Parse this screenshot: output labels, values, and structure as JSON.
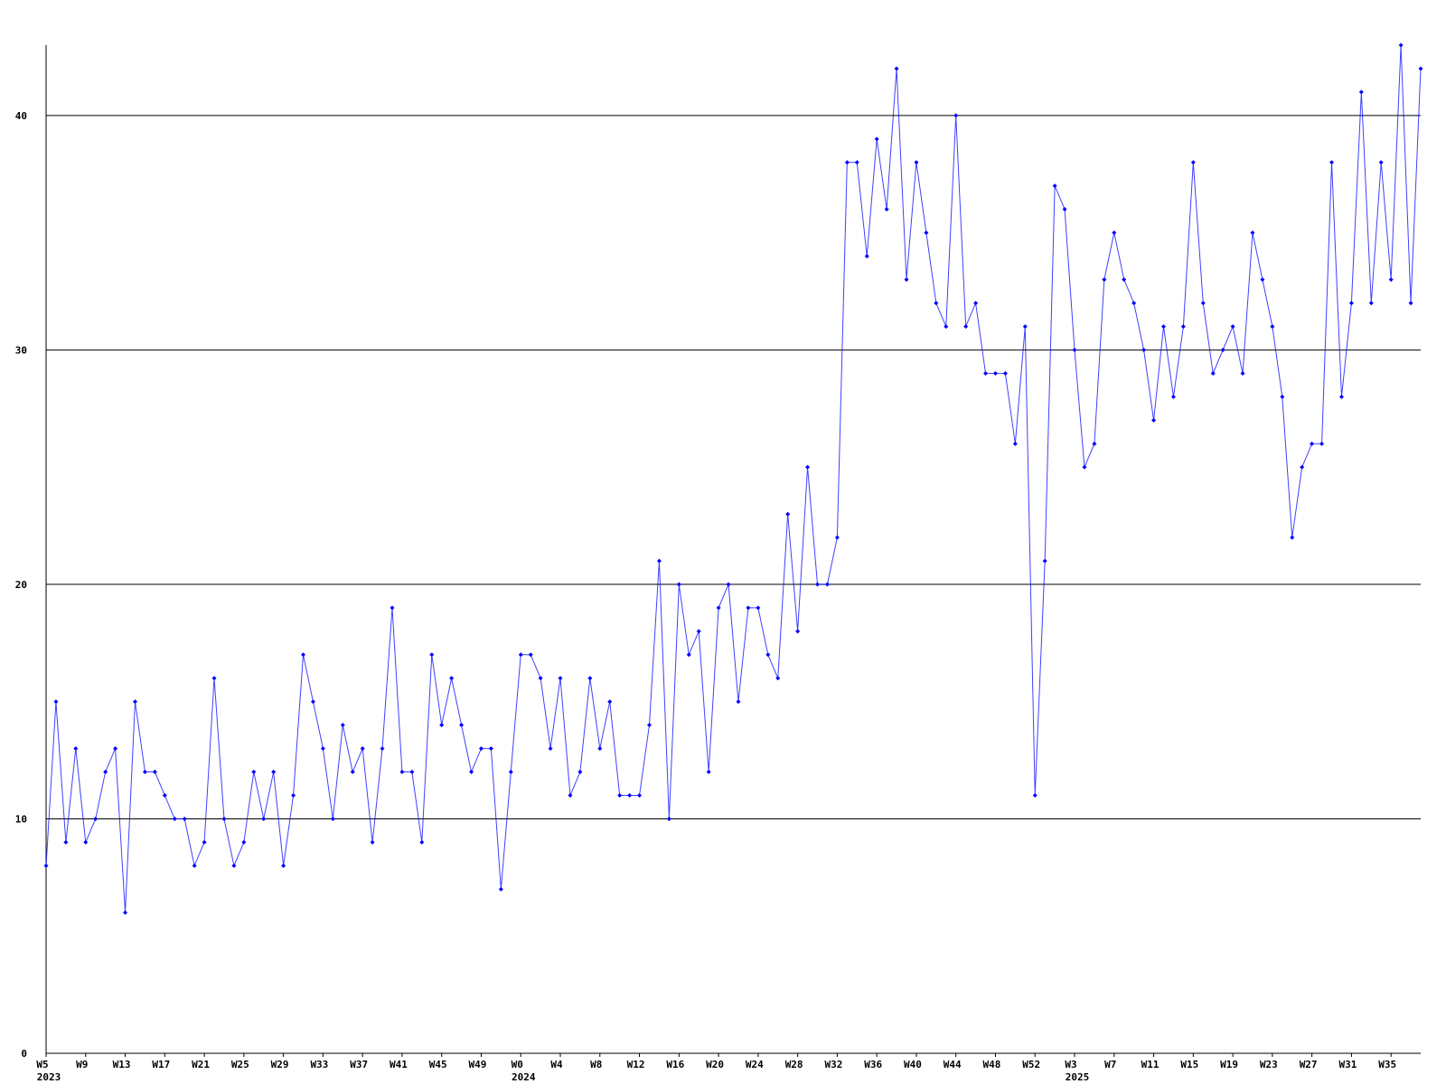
{
  "chart_data": {
    "type": "line",
    "color": "#0000ff",
    "grid": true,
    "ylim": [
      0,
      43
    ],
    "yticks": [
      0,
      10,
      20,
      30,
      40
    ],
    "categories": [
      "W5",
      null,
      null,
      null,
      "W9",
      null,
      null,
      null,
      "W13",
      null,
      null,
      null,
      "W17",
      null,
      null,
      null,
      "W21",
      null,
      null,
      null,
      "W25",
      null,
      null,
      null,
      "W29",
      null,
      null,
      null,
      "W33",
      null,
      null,
      null,
      "W37",
      null,
      null,
      null,
      "W41",
      null,
      null,
      null,
      "W45",
      null,
      null,
      null,
      "W49",
      null,
      null,
      null,
      "W0",
      null,
      null,
      null,
      "W4",
      null,
      null,
      null,
      "W8",
      null,
      null,
      null,
      "W12",
      null,
      null,
      null,
      "W16",
      null,
      null,
      null,
      "W20",
      null,
      null,
      null,
      "W24",
      null,
      null,
      null,
      "W28",
      null,
      null,
      null,
      "W32",
      null,
      null,
      null,
      "W36",
      null,
      null,
      null,
      "W40",
      null,
      null,
      null,
      "W44",
      null,
      null,
      null,
      "W48",
      null,
      null,
      null,
      "W52",
      null,
      null,
      null,
      "W3",
      null,
      null,
      null,
      "W7",
      null,
      null,
      null,
      "W11",
      null,
      null,
      null,
      "W15",
      null,
      null,
      null,
      "W19",
      null,
      null,
      null,
      "W23",
      null,
      null,
      null,
      "W27",
      null,
      null,
      null,
      "W31",
      null,
      null,
      null,
      "W35",
      null,
      null,
      null
    ],
    "category_years": [
      "2023",
      null,
      null,
      null,
      null,
      null,
      null,
      null,
      null,
      null,
      null,
      null,
      null,
      null,
      null,
      null,
      null,
      null,
      null,
      null,
      null,
      null,
      null,
      null,
      null,
      null,
      null,
      null,
      null,
      null,
      null,
      null,
      null,
      null,
      null,
      null,
      null,
      null,
      null,
      null,
      null,
      null,
      null,
      null,
      null,
      null,
      null,
      null,
      "2024",
      null,
      null,
      null,
      null,
      null,
      null,
      null,
      null,
      null,
      null,
      null,
      null,
      null,
      null,
      null,
      null,
      null,
      null,
      null,
      null,
      null,
      null,
      null,
      null,
      null,
      null,
      null,
      null,
      null,
      null,
      null,
      null,
      null,
      null,
      null,
      null,
      null,
      null,
      null,
      null,
      null,
      null,
      null,
      null,
      null,
      null,
      null,
      null,
      null,
      null,
      null,
      null,
      null,
      null,
      null,
      "2025",
      null,
      null,
      null,
      null,
      null,
      null,
      null,
      null,
      null,
      null,
      null,
      null,
      null,
      null,
      null,
      null,
      null,
      null,
      null,
      null,
      null,
      null,
      null,
      null,
      null,
      null,
      null,
      null,
      null,
      null,
      null,
      null,
      null,
      null,
      null
    ],
    "values": [
      8,
      15,
      9,
      13,
      9,
      10,
      12,
      13,
      6,
      15,
      12,
      12,
      11,
      10,
      10,
      8,
      9,
      16,
      10,
      8,
      9,
      12,
      10,
      12,
      8,
      11,
      17,
      15,
      13,
      10,
      14,
      12,
      13,
      9,
      13,
      19,
      12,
      12,
      9,
      17,
      14,
      16,
      14,
      12,
      13,
      13,
      7,
      12,
      17,
      17,
      16,
      13,
      16,
      11,
      12,
      16,
      13,
      15,
      11,
      11,
      11,
      14,
      21,
      10,
      20,
      17,
      18,
      12,
      19,
      20,
      15,
      19,
      19,
      17,
      16,
      23,
      18,
      25,
      20,
      20,
      22,
      38,
      38,
      34,
      39,
      36,
      42,
      33,
      38,
      35,
      32,
      31,
      40,
      31,
      32,
      29,
      29,
      29,
      26,
      31,
      11,
      21,
      37,
      36,
      30,
      25,
      26,
      33,
      35,
      33,
      32,
      30,
      27,
      31,
      28,
      31,
      38,
      32,
      29,
      30,
      31,
      29,
      35,
      33,
      31,
      28,
      22,
      25,
      26,
      26,
      38,
      28,
      32,
      41,
      32,
      38,
      33,
      43,
      32,
      42
    ]
  }
}
